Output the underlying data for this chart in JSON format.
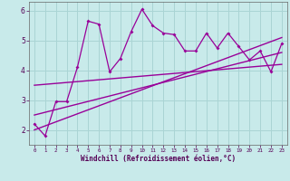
{
  "xlabel": "Windchill (Refroidissement éolien,°C)",
  "bg_color": "#c8eaea",
  "grid_color": "#aad4d4",
  "line_color": "#990099",
  "xlim": [
    -0.5,
    23.5
  ],
  "ylim": [
    1.5,
    6.3
  ],
  "xticks": [
    0,
    1,
    2,
    3,
    4,
    5,
    6,
    7,
    8,
    9,
    10,
    11,
    12,
    13,
    14,
    15,
    16,
    17,
    18,
    19,
    20,
    21,
    22,
    23
  ],
  "yticks": [
    2,
    3,
    4,
    5,
    6
  ],
  "series1_x": [
    0,
    1,
    2,
    3,
    4,
    5,
    6,
    7,
    8,
    9,
    10,
    11,
    12,
    13,
    14,
    15,
    16,
    17,
    18,
    19,
    20,
    21,
    22,
    23
  ],
  "series1_y": [
    2.2,
    1.8,
    2.95,
    2.95,
    4.1,
    5.65,
    5.55,
    3.95,
    4.4,
    5.3,
    6.05,
    5.5,
    5.25,
    5.2,
    4.65,
    4.65,
    5.25,
    4.75,
    5.25,
    4.8,
    4.35,
    4.65,
    3.95,
    4.9
  ],
  "series2_x": [
    0,
    23
  ],
  "series2_y": [
    2.0,
    5.1
  ],
  "series3_x": [
    0,
    23
  ],
  "series3_y": [
    2.5,
    4.6
  ],
  "series4_x": [
    0,
    23
  ],
  "series4_y": [
    3.5,
    4.2
  ]
}
